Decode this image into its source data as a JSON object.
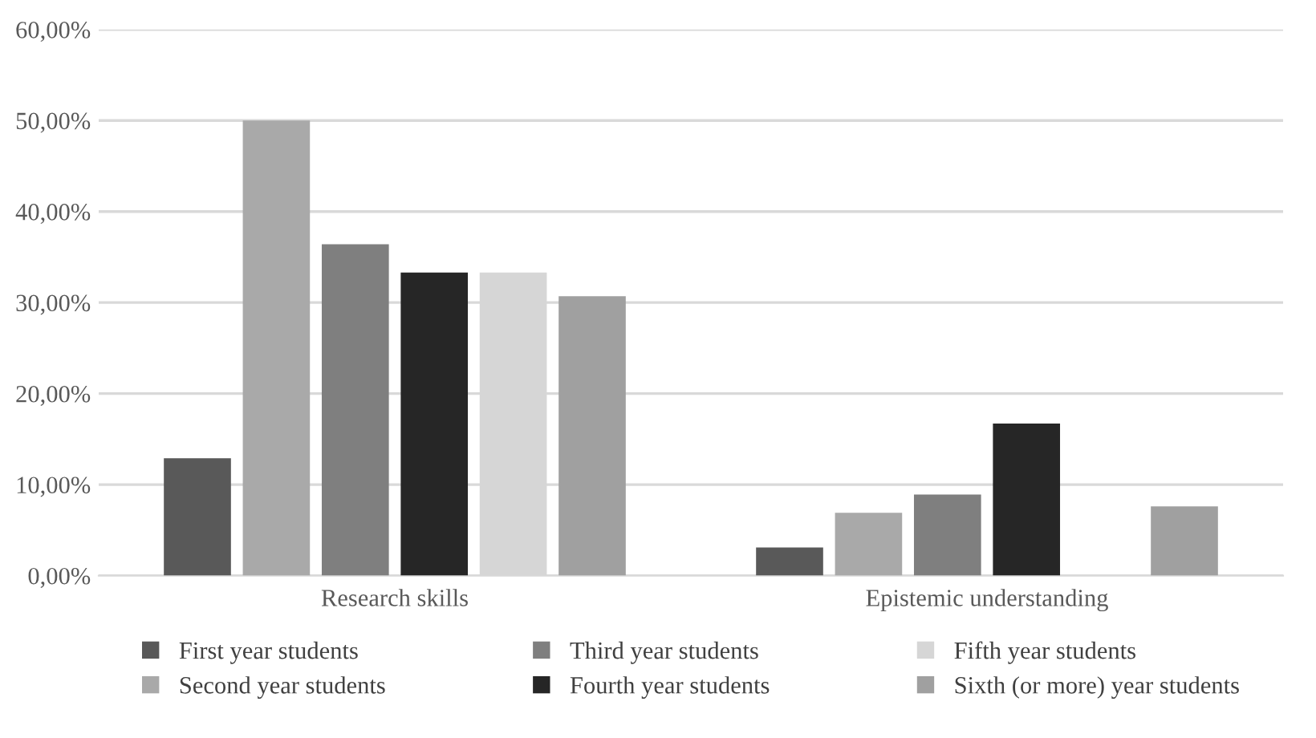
{
  "chart_data": {
    "type": "bar",
    "categories": [
      "Research skills",
      "Epistemic understanding"
    ],
    "series": [
      {
        "name": "First year students",
        "color": "#595959",
        "values": [
          12.9,
          3.1
        ]
      },
      {
        "name": "Second year students",
        "color": "#a9a9a9",
        "values": [
          50,
          6.9
        ]
      },
      {
        "name": "Third year students",
        "color": "#7f7f7f",
        "values": [
          36.4,
          8.9
        ]
      },
      {
        "name": "Fourth year students",
        "color": "#262626",
        "values": [
          33.3,
          16.7
        ]
      },
      {
        "name": "Fifth year students",
        "color": "#d6d6d6",
        "values": [
          33.3,
          0
        ]
      },
      {
        "name": "Sixth (or more) year students",
        "color": "#a0a0a0",
        "values": [
          30.7,
          7.6
        ]
      }
    ],
    "ylim": [
      0,
      60
    ],
    "yticks": [
      {
        "value": 0,
        "label": "0,00%"
      },
      {
        "value": 10,
        "label": "10,00%"
      },
      {
        "value": 20,
        "label": "20,00%"
      },
      {
        "value": 30,
        "label": "30,00%"
      },
      {
        "value": 40,
        "label": "40,00%"
      },
      {
        "value": 50,
        "label": "50,00%"
      },
      {
        "value": 60,
        "label": "60,00%"
      }
    ],
    "grid": "y",
    "legend": "bottom"
  }
}
